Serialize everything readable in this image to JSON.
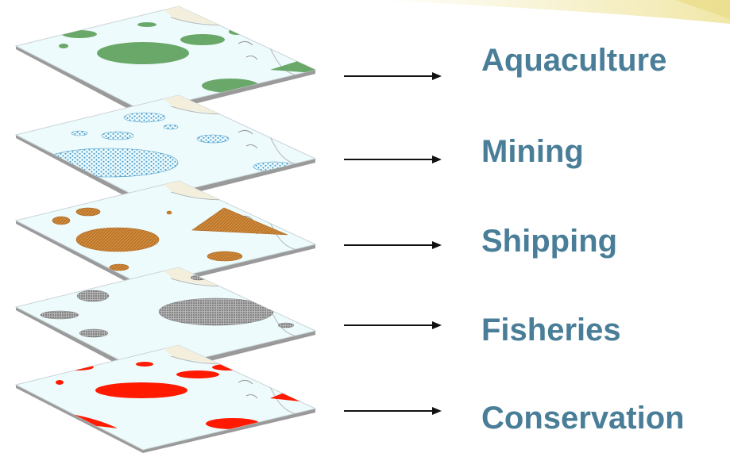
{
  "layers": [
    {
      "label": "Aquaculture",
      "zone_color": "#6aa86a",
      "pattern": "solid"
    },
    {
      "label": "Mining",
      "zone_color": "#4d9fcc",
      "pattern": "dots"
    },
    {
      "label": "Shipping",
      "zone_color": "#cf8a3c",
      "pattern": "hatch"
    },
    {
      "label": "Fisheries",
      "zone_color": "#7a7a7a",
      "pattern": "stipple"
    },
    {
      "label": "Conservation",
      "zone_color": "#ff1a00",
      "pattern": "solid"
    }
  ],
  "colors": {
    "label_text": "#4a7e98",
    "sea": "#eefbfc",
    "land": "#f3efdc",
    "sheet_edge": "#9a9a9a",
    "arrow": "#111111",
    "corner_glow": "#f1e7a8"
  }
}
